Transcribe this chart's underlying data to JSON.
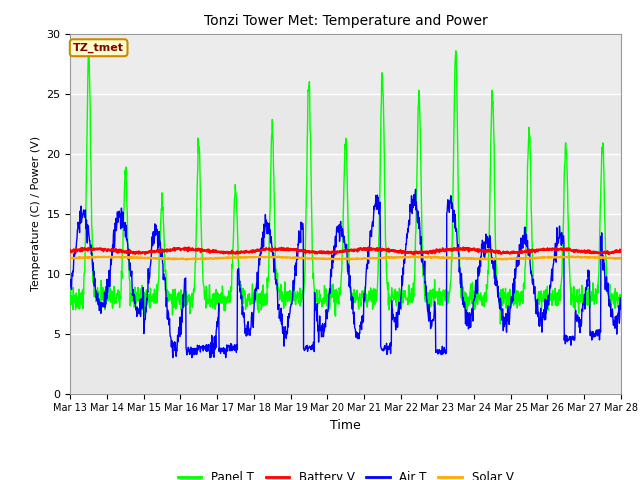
{
  "title": "Tonzi Tower Met: Temperature and Power",
  "ylabel": "Temperature (C) / Power (V)",
  "xlabel": "Time",
  "ylim": [
    0,
    30
  ],
  "xlim": [
    0,
    15
  ],
  "background_color": "#e8e8e8",
  "annotation_text": "TZ_tmet",
  "annotation_bg": "#ffffcc",
  "annotation_border": "#cc8800",
  "annotation_fg": "#880000",
  "x_tick_labels": [
    "Mar 13",
    "Mar 14",
    "Mar 15",
    "Mar 16",
    "Mar 17",
    "Mar 18",
    "Mar 19",
    "Mar 20",
    "Mar 21",
    "Mar 22",
    "Mar 23",
    "Mar 24",
    "Mar 25",
    "Mar 26",
    "Mar 27",
    "Mar 28"
  ],
  "legend_labels": [
    "Panel T",
    "Battery V",
    "Air T",
    "Solar V"
  ],
  "legend_colors": [
    "#00ff00",
    "#ff0000",
    "#0000ff",
    "#ffaa00"
  ],
  "battery_v_level": 11.9,
  "solar_v_level": 11.3
}
